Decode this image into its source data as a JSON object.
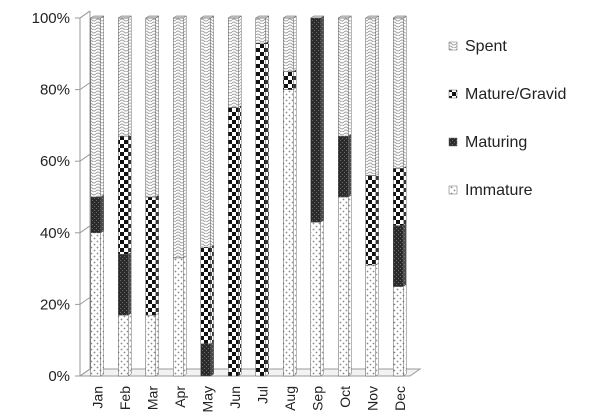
{
  "chart_data": {
    "type": "bar",
    "stacked": true,
    "percent_stacked": true,
    "three_d": true,
    "categories": [
      "Jan",
      "Feb",
      "Mar",
      "Apr",
      "May",
      "Jun",
      "Jul",
      "Aug",
      "Sep",
      "Oct",
      "Nov",
      "Dec"
    ],
    "series": [
      {
        "name": "Immature",
        "values": [
          40,
          17,
          17,
          33,
          0,
          0,
          0,
          80,
          43,
          50,
          31,
          25
        ],
        "pattern": "dots-light"
      },
      {
        "name": "Maturing",
        "values": [
          10,
          17,
          0,
          0,
          9,
          0,
          0,
          0,
          57,
          17,
          0,
          17
        ],
        "pattern": "dense-dark"
      },
      {
        "name": "Mature/Gravid",
        "values": [
          0,
          33,
          33,
          0,
          27,
          75,
          93,
          5,
          0,
          0,
          25,
          16
        ],
        "pattern": "checker"
      },
      {
        "name": "Spent",
        "values": [
          50,
          33,
          50,
          67,
          64,
          25,
          7,
          15,
          0,
          33,
          44,
          42
        ],
        "pattern": "waves-light"
      }
    ],
    "ylim": [
      0,
      100
    ],
    "y_ticks": [
      "0%",
      "20%",
      "40%",
      "60%",
      "80%",
      "100%"
    ],
    "y_tick_values": [
      0,
      20,
      40,
      60,
      80,
      100
    ],
    "title": "",
    "xlabel": "",
    "ylabel": "",
    "grid": false,
    "legend": "right",
    "colors": {
      "ink": "#1a1a1a",
      "light": "#bfbfbf",
      "axis": "#9a9a9a"
    }
  }
}
